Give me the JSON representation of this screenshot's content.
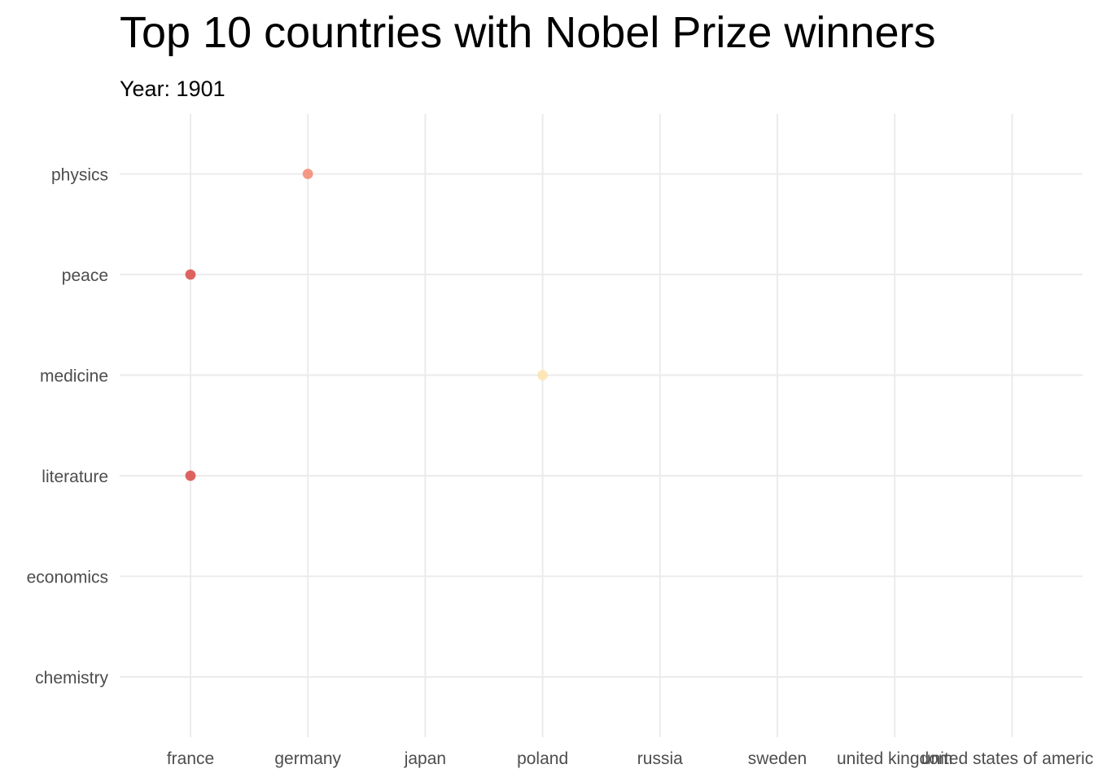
{
  "chart_data": {
    "type": "scatter",
    "title": "Top 10 countries with Nobel Prize winners",
    "subtitle": "Year: 1901",
    "xlabel": "",
    "ylabel": "",
    "x_categories": [
      "france",
      "germany",
      "japan",
      "poland",
      "russia",
      "sweden",
      "united kingdom",
      "united states of america"
    ],
    "y_categories": [
      "chemistry",
      "economics",
      "literature",
      "medicine",
      "peace",
      "physics"
    ],
    "points": [
      {
        "x": "germany",
        "y": "physics",
        "color": "#f28e79"
      },
      {
        "x": "france",
        "y": "peace",
        "color": "#d9534f"
      },
      {
        "x": "poland",
        "y": "medicine",
        "color": "#fde4b0"
      },
      {
        "x": "france",
        "y": "literature",
        "color": "#d9534f"
      }
    ],
    "grid": true,
    "legend": "none"
  }
}
